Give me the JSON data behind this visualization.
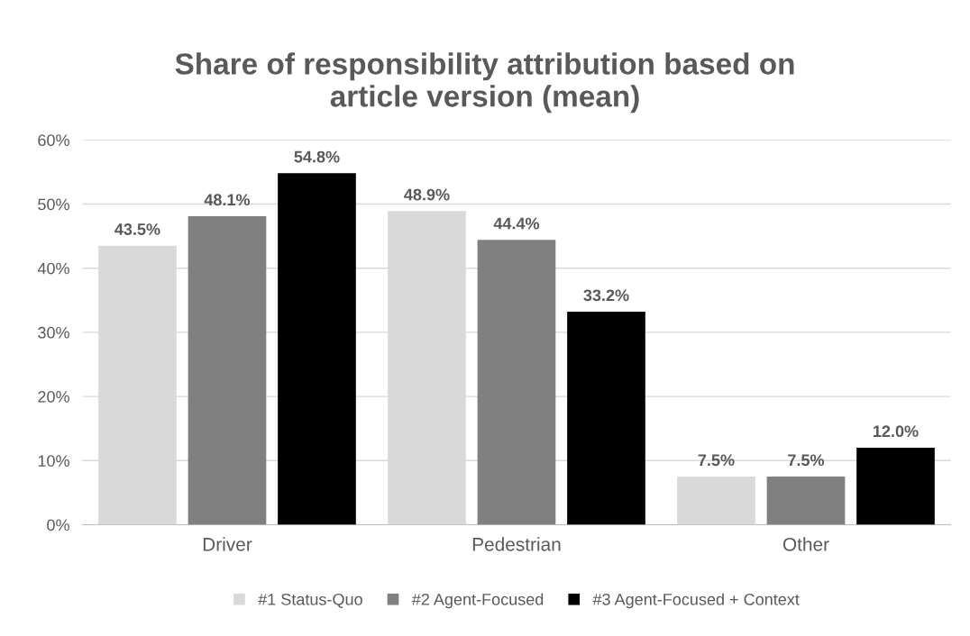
{
  "chart_data": {
    "type": "bar",
    "title": "Share of responsibility attribution based on\narticle version (mean)",
    "categories": [
      "Driver",
      "Pedestrian",
      "Other"
    ],
    "series": [
      {
        "name": "#1 Status-Quo",
        "color": "#d9d9d9",
        "values": [
          43.5,
          48.9,
          7.5
        ],
        "value_labels": [
          "43.5%",
          "48.9%",
          "7.5%"
        ]
      },
      {
        "name": "#2 Agent-Focused",
        "color": "#808080",
        "values": [
          48.1,
          44.4,
          7.5
        ],
        "value_labels": [
          "48.1%",
          "44.4%",
          "7.5%"
        ]
      },
      {
        "name": "#3 Agent-Focused + Context",
        "color": "#000000",
        "values": [
          54.8,
          33.2,
          12.0
        ],
        "value_labels": [
          "54.8%",
          "33.2%",
          "12.0%"
        ]
      }
    ],
    "ylim": [
      0,
      60
    ],
    "yticks": [
      {
        "value": 0,
        "label": "0%"
      },
      {
        "value": 10,
        "label": "10%"
      },
      {
        "value": 20,
        "label": "20%"
      },
      {
        "value": 30,
        "label": "30%"
      },
      {
        "value": 40,
        "label": "40%"
      },
      {
        "value": 50,
        "label": "50%"
      },
      {
        "value": 60,
        "label": "60%"
      }
    ],
    "grid": "y",
    "legend": "bottom"
  }
}
